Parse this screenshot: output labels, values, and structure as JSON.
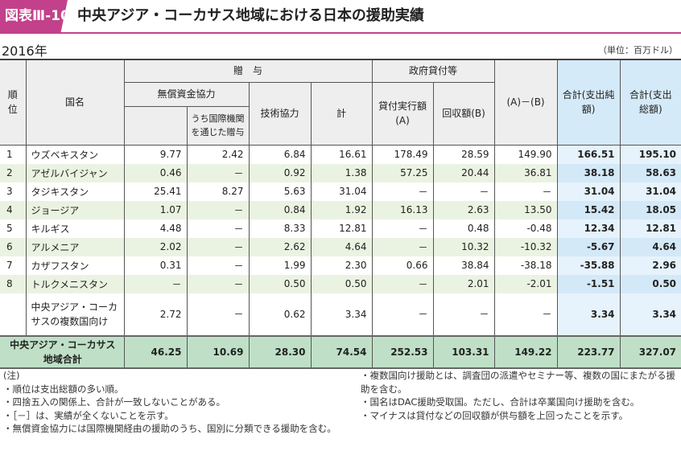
{
  "header": {
    "badge": "図表Ⅲ-10",
    "title": "中央アジア・コーカサス地域における日本の援助実績",
    "year": "2016年",
    "unit": "（単位：百万ドル）"
  },
  "columns": {
    "rank": "順位",
    "country": "国名",
    "grant": "贈　与",
    "grant_aid": "無償資金協力",
    "via_intl": "うち国際機関を通じた贈与",
    "tech": "技術協力",
    "subtotal": "計",
    "loans": "政府貸付等",
    "disbursed": "貸付実行額(A)",
    "recovered": "回収額(B)",
    "diff": "(A)－(B)",
    "net": "合計(支出純額)",
    "gross": "合計(支出総額)"
  },
  "rows": [
    {
      "rank": "1",
      "country": "ウズベキスタン",
      "v": [
        "9.77",
        "2.42",
        "6.84",
        "16.61",
        "178.49",
        "28.59",
        "149.90",
        "166.51",
        "195.10"
      ]
    },
    {
      "rank": "2",
      "country": "アゼルバイジャン",
      "v": [
        "0.46",
        "－",
        "0.92",
        "1.38",
        "57.25",
        "20.44",
        "36.81",
        "38.18",
        "58.63"
      ]
    },
    {
      "rank": "3",
      "country": "タジキスタン",
      "v": [
        "25.41",
        "8.27",
        "5.63",
        "31.04",
        "－",
        "－",
        "－",
        "31.04",
        "31.04"
      ]
    },
    {
      "rank": "4",
      "country": "ジョージア",
      "v": [
        "1.07",
        "－",
        "0.84",
        "1.92",
        "16.13",
        "2.63",
        "13.50",
        "15.42",
        "18.05"
      ]
    },
    {
      "rank": "5",
      "country": "キルギス",
      "v": [
        "4.48",
        "－",
        "8.33",
        "12.81",
        "－",
        "0.48",
        "-0.48",
        "12.34",
        "12.81"
      ]
    },
    {
      "rank": "6",
      "country": "アルメニア",
      "v": [
        "2.02",
        "－",
        "2.62",
        "4.64",
        "－",
        "10.32",
        "-10.32",
        "-5.67",
        "4.64"
      ]
    },
    {
      "rank": "7",
      "country": "カザフスタン",
      "v": [
        "0.31",
        "－",
        "1.99",
        "2.30",
        "0.66",
        "38.84",
        "-38.18",
        "-35.88",
        "2.96"
      ]
    },
    {
      "rank": "8",
      "country": "トルクメニスタン",
      "v": [
        "－",
        "－",
        "0.50",
        "0.50",
        "－",
        "2.01",
        "-2.01",
        "-1.51",
        "0.50"
      ]
    },
    {
      "rank": "",
      "country": "中央アジア・コーカサスの複数国向け",
      "v": [
        "2.72",
        "－",
        "0.62",
        "3.34",
        "－",
        "－",
        "－",
        "3.34",
        "3.34"
      ]
    }
  ],
  "total": {
    "label": "中央アジア・コーカサス地域合計",
    "v": [
      "46.25",
      "10.69",
      "28.30",
      "74.54",
      "252.53",
      "103.31",
      "149.22",
      "223.77",
      "327.07"
    ]
  },
  "notes": {
    "heading": "(注)",
    "left": [
      "・順位は支出総額の多い順。",
      "・四捨五入の関係上、合計が一致しないことがある。",
      "・［－］は、実績が全くないことを示す。",
      "・無償資金協力には国際機関経由の援助のうち、国別に分類できる援助を含む。"
    ],
    "right": [
      "・複数国向け援助とは、調査団の派遣やセミナー等、複数の国にまたがる援助を含む。",
      "・国名はDAC援助受取国。ただし、合計は卒業国向け援助を含む。",
      "・マイナスは貸付などの回収額が供与額を上回ったことを示す。"
    ]
  }
}
